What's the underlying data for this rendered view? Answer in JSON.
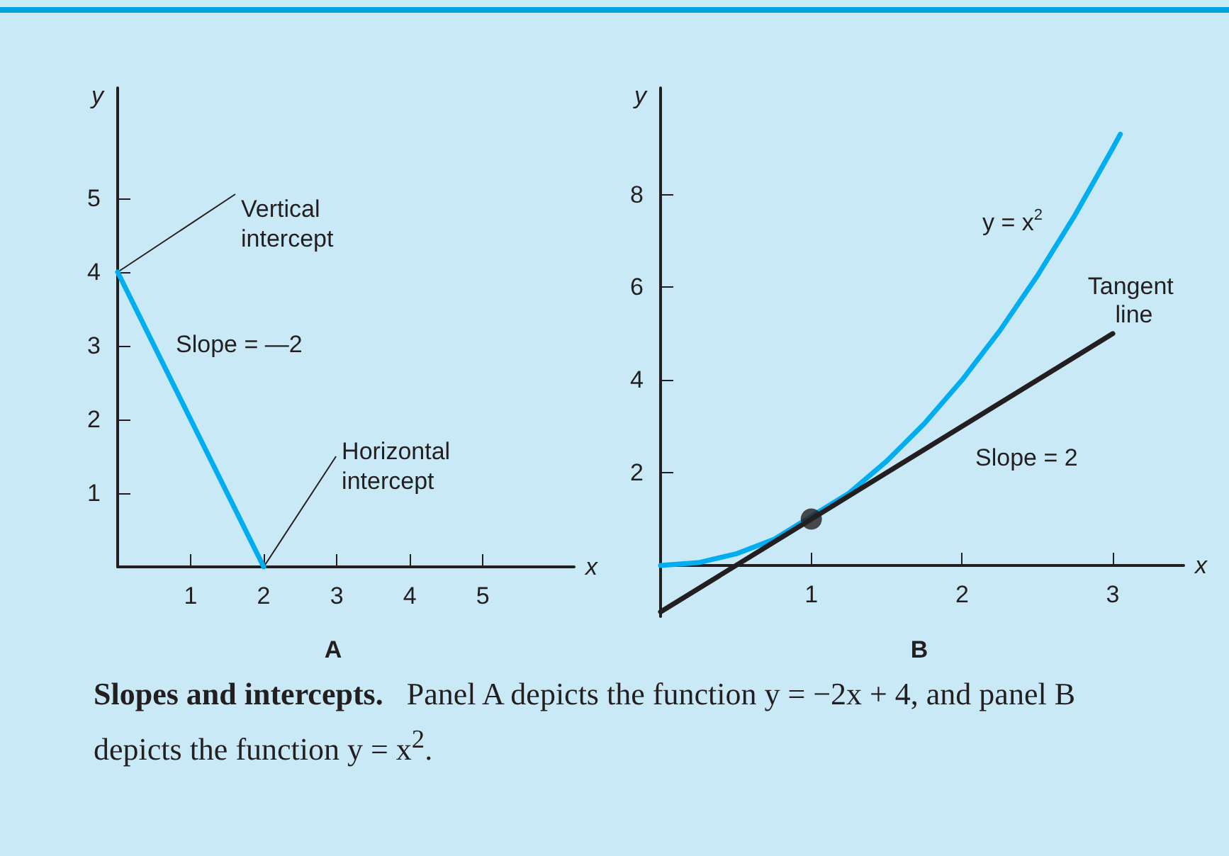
{
  "chart_data": [
    {
      "type": "line",
      "title": "A",
      "xlabel": "x",
      "ylabel": "y",
      "xlim": [
        0,
        6.25
      ],
      "ylim": [
        0,
        6.5
      ],
      "xticks": [
        1,
        2,
        3,
        4,
        5
      ],
      "yticks": [
        1,
        2,
        3,
        4,
        5
      ],
      "grid": false,
      "marker": "none",
      "line_style": "solid",
      "series": [
        {
          "x": [
            0,
            2
          ],
          "values": [
            4,
            0
          ],
          "color": "#00aeef"
        }
      ],
      "annotations": [
        {
          "text": "Vertical intercept",
          "x": 0,
          "y": 4
        },
        {
          "text": "Horizontal intercept",
          "x": 2,
          "y": 0
        },
        "Slope = —2",
        "Slopes and intercepts.",
        "Panel A depicts the function y = −2x + 4, and panel B depicts the function y = x$^{2}$."
      ]
    },
    {
      "type": "line",
      "title": "B",
      "xlabel": "x",
      "ylabel": "y",
      "xlim": [
        0,
        3.47
      ],
      "ylim": [
        -1.1,
        10.3
      ],
      "xticks": [
        1,
        2,
        3
      ],
      "yticks": [
        2,
        4,
        6,
        8
      ],
      "grid": false,
      "line_style": "solid",
      "series": [
        {
          "x": [
            0,
            0.25,
            0.5,
            0.75,
            1.25,
            1.5,
            1.75,
            2,
            2.25,
            2.5,
            2.75,
            3,
            3.05
          ],
          "values": [
            0,
            0.06,
            0.25,
            0.56,
            1.56,
            2.25,
            3.06,
            4,
            5.06,
            6.25,
            7.56,
            9,
            9.3
          ],
          "color": "#00aeef"
        },
        {
          "x": [
            0,
            3
          ],
          "values": [
            -1,
            5
          ],
          "color": "#231f20"
        },
        {
          "type": "scatter",
          "x": [
            1
          ],
          "values": [
            1
          ],
          "color": "#231f20",
          "marker": "circle"
        }
      ],
      "annotations": [
        "y = x$^{2}$",
        "Tangent line",
        "Slope = 2"
      ]
    }
  ]
}
